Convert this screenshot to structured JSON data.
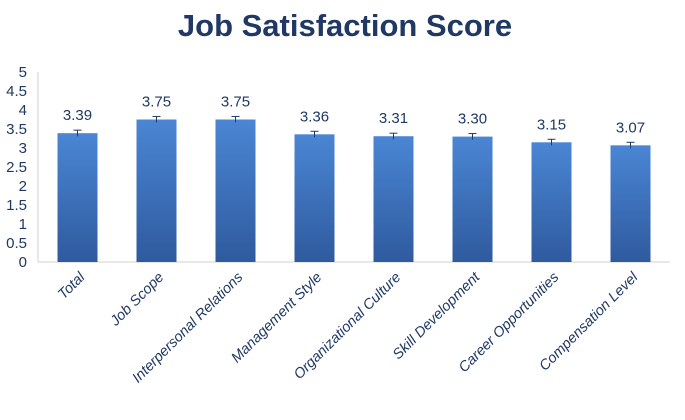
{
  "chart_data": {
    "type": "bar",
    "title": "Job Satisfaction Score",
    "xlabel": "",
    "ylabel": "",
    "categories": [
      "Total",
      "Job Scope",
      "Interpersonal Relations",
      "Management Style",
      "Organizational Culture",
      "Skill Development",
      "Career Opportunities",
      "Compensation Level"
    ],
    "values": [
      3.39,
      3.75,
      3.75,
      3.36,
      3.31,
      3.3,
      3.15,
      3.07
    ],
    "data_labels": [
      "3.39",
      "3.75",
      "3.75",
      "3.36",
      "3.31",
      "3.30",
      "3.15",
      "3.07"
    ],
    "error": [
      0.08,
      0.08,
      0.08,
      0.08,
      0.08,
      0.08,
      0.08,
      0.08
    ],
    "ylim": [
      0,
      5
    ],
    "yticks": [
      "0",
      "0.5",
      "1",
      "1.5",
      "2",
      "2.5",
      "3",
      "3.5",
      "4",
      "4.5",
      "5"
    ],
    "grid": false,
    "legend": "none",
    "colors": {
      "bar_top": "#4a86d4",
      "bar_bottom": "#2f5a9e",
      "text": "#1f3864",
      "axis": "#d0d0d0",
      "error_bar": "#1f3864"
    }
  }
}
